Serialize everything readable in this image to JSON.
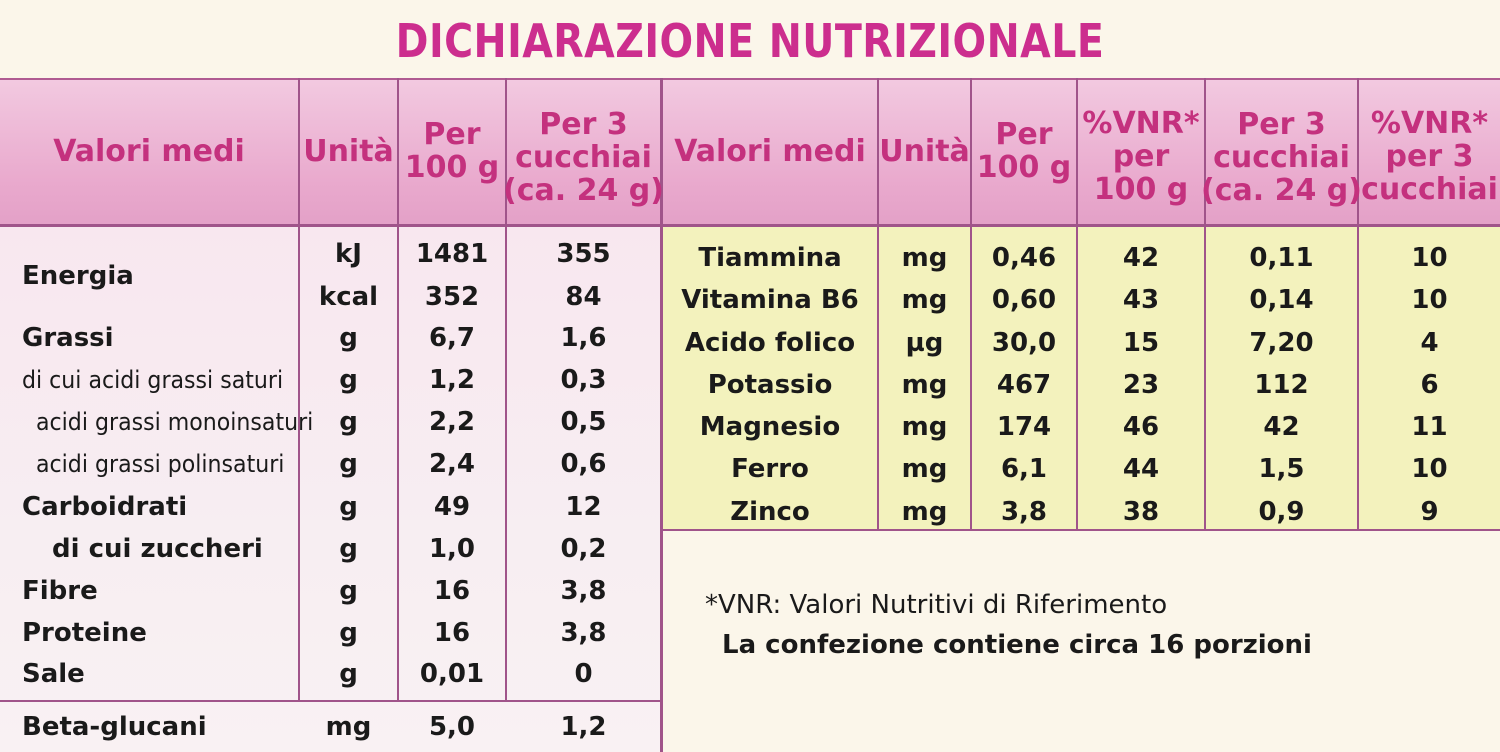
{
  "title": "DICHIARAZIONE NUTRIZIONALE",
  "left_headers": {
    "valori": "Valori medi",
    "unita": "Unità",
    "per100": [
      "Per",
      "100 g"
    ],
    "per3": [
      "Per 3",
      "cucchiai",
      "(ca. 24 g)"
    ]
  },
  "left_rows": [
    {
      "label": "Energia",
      "unit": "kJ",
      "per100": "1481",
      "per3": "355"
    },
    {
      "label": "",
      "unit": "kcal",
      "per100": "352",
      "per3": "84"
    },
    {
      "label": "Grassi",
      "unit": "g",
      "per100": "6,7",
      "per3": "1,6"
    },
    {
      "label": "di cui acidi grassi saturi",
      "unit": "g",
      "per100": "1,2",
      "per3": "0,3"
    },
    {
      "label": "acidi grassi monoinsaturi",
      "unit": "g",
      "per100": "2,2",
      "per3": "0,5"
    },
    {
      "label": "acidi grassi polinsaturi",
      "unit": "g",
      "per100": "2,4",
      "per3": "0,6"
    },
    {
      "label": "Carboidrati",
      "unit": "g",
      "per100": "49",
      "per3": "12"
    },
    {
      "label": "di cui zuccheri",
      "unit": "g",
      "per100": "1,0",
      "per3": "0,2"
    },
    {
      "label": "Fibre",
      "unit": "g",
      "per100": "16",
      "per3": "3,8"
    },
    {
      "label": "Proteine",
      "unit": "g",
      "per100": "16",
      "per3": "3,8"
    },
    {
      "label": "Sale",
      "unit": "g",
      "per100": "0,01",
      "per3": "0"
    },
    {
      "label": "Beta-glucani",
      "unit": "mg",
      "per100": "5,0",
      "per3": "1,2"
    }
  ],
  "right_headers": {
    "valori": "Valori medi",
    "unita": "Unità",
    "per100": [
      "Per",
      "100 g"
    ],
    "vnr100": [
      "%VNR*",
      "per",
      "100 g"
    ],
    "per3": [
      "Per 3",
      "cucchiai",
      "(ca. 24 g)"
    ],
    "vnr3": [
      "%VNR*",
      "per 3",
      "cucchiai"
    ]
  },
  "right_rows": [
    {
      "name": "Tiammina",
      "unit": "mg",
      "per100": "0,46",
      "vnr100": "42",
      "per3": "0,11",
      "vnr3": "10"
    },
    {
      "name": "Vitamina B6",
      "unit": "mg",
      "per100": "0,60",
      "vnr100": "43",
      "per3": "0,14",
      "vnr3": "10"
    },
    {
      "name": "Acido folico",
      "unit": "µg",
      "per100": "30,0",
      "vnr100": "15",
      "per3": "7,20",
      "vnr3": "4"
    },
    {
      "name": "Potassio",
      "unit": "mg",
      "per100": "467",
      "vnr100": "23",
      "per3": "112",
      "vnr3": "6"
    },
    {
      "name": "Magnesio",
      "unit": "mg",
      "per100": "174",
      "vnr100": "46",
      "per3": "42",
      "vnr3": "11"
    },
    {
      "name": "Ferro",
      "unit": "mg",
      "per100": "6,1",
      "vnr100": "44",
      "per3": "1,5",
      "vnr3": "10"
    },
    {
      "name": "Zinco",
      "unit": "mg",
      "per100": "3,8",
      "vnr100": "38",
      "per3": "0,9",
      "vnr3": "9"
    }
  ],
  "footnote": "*VNR: Valori Nutritivi di Riferimento",
  "servings": "La confezione contiene circa 16 porzioni",
  "colors": {
    "accent": "#cc2e8e",
    "header_band": "#e9a9cd",
    "right_band": "#f3f2bd",
    "rule": "#a0548a"
  }
}
